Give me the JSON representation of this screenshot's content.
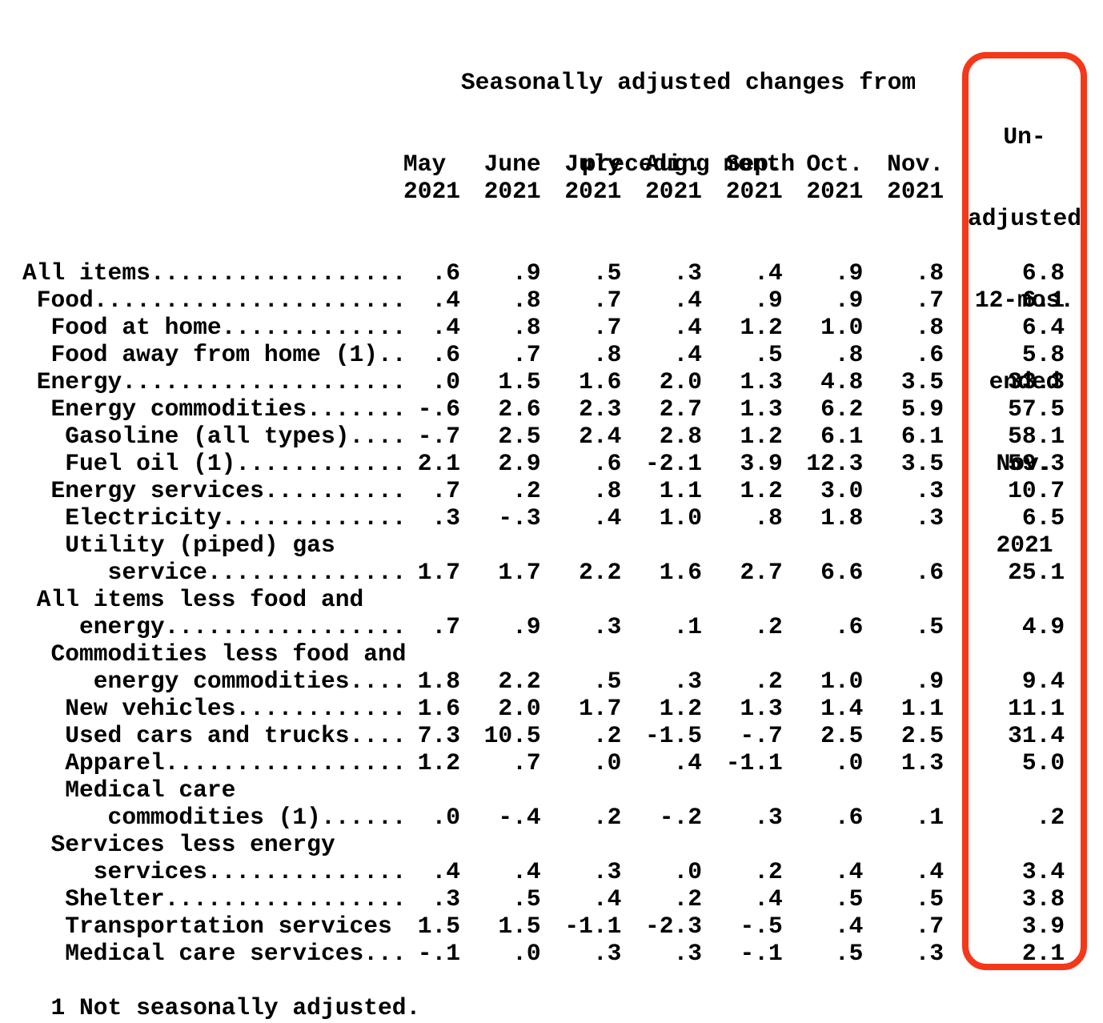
{
  "title": {
    "line1": "Seasonally adjusted changes from",
    "line2": "preceding month"
  },
  "header": {
    "months": [
      {
        "name": "May",
        "year": "2021"
      },
      {
        "name": "June",
        "year": "2021"
      },
      {
        "name": "July",
        "year": "2021"
      },
      {
        "name": "Aug.",
        "year": "2021"
      },
      {
        "name": "Sep.",
        "year": "2021"
      },
      {
        "name": "Oct.",
        "year": "2021"
      },
      {
        "name": "Nov.",
        "year": "2021"
      }
    ],
    "annual_lines": [
      "Un-",
      "adjusted",
      "12-mos.",
      "ended",
      "Nov.",
      "2021"
    ]
  },
  "table": {
    "rows": [
      {
        "label": "All items..................",
        "values": [
          ".6",
          ".9",
          ".5",
          ".3",
          ".4",
          ".9",
          ".8"
        ],
        "annual": "6.8"
      },
      {
        "label": " Food......................",
        "values": [
          ".4",
          ".8",
          ".7",
          ".4",
          ".9",
          ".9",
          ".7"
        ],
        "annual": "6.1"
      },
      {
        "label": "  Food at home.............",
        "values": [
          ".4",
          ".8",
          ".7",
          ".4",
          "1.2",
          "1.0",
          ".8"
        ],
        "annual": "6.4"
      },
      {
        "label": "  Food away from home (1)..",
        "values": [
          ".6",
          ".7",
          ".8",
          ".4",
          ".5",
          ".8",
          ".6"
        ],
        "annual": "5.8"
      },
      {
        "label": " Energy....................",
        "values": [
          ".0",
          "1.5",
          "1.6",
          "2.0",
          "1.3",
          "4.8",
          "3.5"
        ],
        "annual": "33.3"
      },
      {
        "label": "  Energy commodities.......",
        "values": [
          "-.6",
          "2.6",
          "2.3",
          "2.7",
          "1.3",
          "6.2",
          "5.9"
        ],
        "annual": "57.5"
      },
      {
        "label": "   Gasoline (all types)....",
        "values": [
          "-.7",
          "2.5",
          "2.4",
          "2.8",
          "1.2",
          "6.1",
          "6.1"
        ],
        "annual": "58.1"
      },
      {
        "label": "   Fuel oil (1)............",
        "values": [
          "2.1",
          "2.9",
          ".6",
          "-2.1",
          "3.9",
          "12.3",
          "3.5"
        ],
        "annual": "59.3"
      },
      {
        "label": "  Energy services..........",
        "values": [
          ".7",
          ".2",
          ".8",
          "1.1",
          "1.2",
          "3.0",
          ".3"
        ],
        "annual": "10.7"
      },
      {
        "label": "   Electricity.............",
        "values": [
          ".3",
          "-.3",
          ".4",
          "1.0",
          ".8",
          "1.8",
          ".3"
        ],
        "annual": "6.5"
      },
      {
        "label": "   Utility (piped) gas\n      service..............",
        "values": [
          "1.7",
          "1.7",
          "2.2",
          "1.6",
          "2.7",
          "6.6",
          ".6"
        ],
        "annual": "25.1"
      },
      {
        "label": " All items less food and\n    energy.................",
        "values": [
          ".7",
          ".9",
          ".3",
          ".1",
          ".2",
          ".6",
          ".5"
        ],
        "annual": "4.9"
      },
      {
        "label": "  Commodities less food and\n     energy commodities....",
        "values": [
          "1.8",
          "2.2",
          ".5",
          ".3",
          ".2",
          "1.0",
          ".9"
        ],
        "annual": "9.4"
      },
      {
        "label": "   New vehicles............",
        "values": [
          "1.6",
          "2.0",
          "1.7",
          "1.2",
          "1.3",
          "1.4",
          "1.1"
        ],
        "annual": "11.1"
      },
      {
        "label": "   Used cars and trucks....",
        "values": [
          "7.3",
          "10.5",
          ".2",
          "-1.5",
          "-.7",
          "2.5",
          "2.5"
        ],
        "annual": "31.4"
      },
      {
        "label": "   Apparel.................",
        "values": [
          "1.2",
          ".7",
          ".0",
          ".4",
          "-1.1",
          ".0",
          "1.3"
        ],
        "annual": "5.0"
      },
      {
        "label": "   Medical care\n      commodities (1)......",
        "values": [
          ".0",
          "-.4",
          ".2",
          "-.2",
          ".3",
          ".6",
          ".1"
        ],
        "annual": ".2"
      },
      {
        "label": "  Services less energy\n     services..............",
        "values": [
          ".4",
          ".4",
          ".3",
          ".0",
          ".2",
          ".4",
          ".4"
        ],
        "annual": "3.4"
      },
      {
        "label": "   Shelter.................",
        "values": [
          ".3",
          ".5",
          ".4",
          ".2",
          ".4",
          ".5",
          ".5"
        ],
        "annual": "3.8"
      },
      {
        "label": "   Transportation services",
        "values": [
          "1.5",
          "1.5",
          "-1.1",
          "-2.3",
          "-.5",
          ".4",
          ".7"
        ],
        "annual": "3.9"
      },
      {
        "label": "   Medical care services...",
        "values": [
          "-.1",
          ".0",
          ".3",
          ".3",
          "-.1",
          ".5",
          ".3"
        ],
        "annual": "2.1"
      }
    ]
  },
  "footnote": "  1 Not seasonally adjusted.",
  "colors": {
    "highlight": "#f5371a",
    "text": "#000000",
    "background": "#ffffff"
  }
}
